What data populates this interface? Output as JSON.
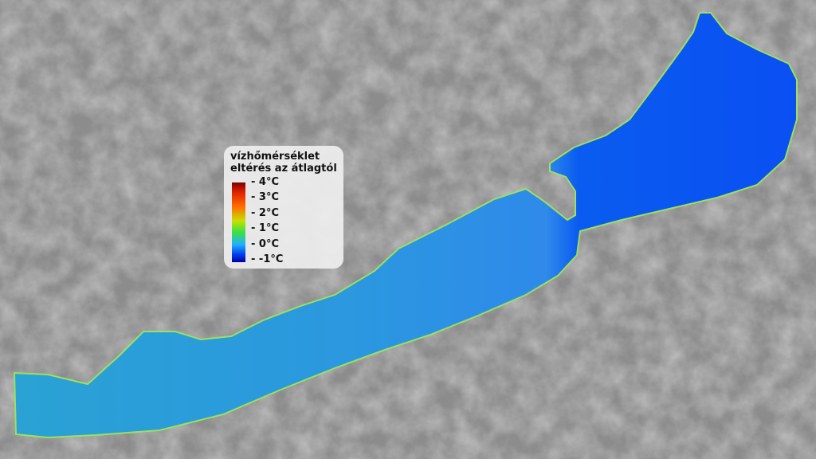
{
  "legend": {
    "title_line1": "vízhőmérséklet",
    "title_line2": "eltérés az átlagtól",
    "ticks": [
      "- 4°C",
      "- 3°C",
      "- 2°C",
      "- 1°C",
      "- 0°C",
      "- -1°C"
    ],
    "colors": {
      "max": "#7a0000",
      "hot": "#ff6a00",
      "mid": "#40e040",
      "zero": "#0040f0",
      "min": "#0000a0"
    }
  },
  "map": {
    "lake_colors": {
      "west": "#2aa0d8",
      "center": "#2f8fe8",
      "east": "#0a50f0",
      "shore": "#9be060"
    },
    "land_color": "#8a8a8a"
  }
}
